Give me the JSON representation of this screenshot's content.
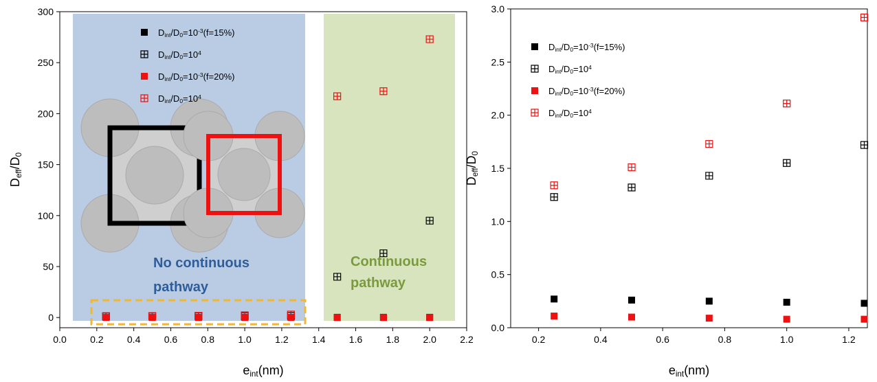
{
  "chart_data": [
    {
      "type": "scatter",
      "xlabel": [
        {
          "text": "e"
        },
        {
          "text": "int",
          "script": "sub"
        },
        {
          "text": "(nm)"
        }
      ],
      "ylabel": [
        {
          "text": "D"
        },
        {
          "text": "eff",
          "script": "sub"
        },
        {
          "text": "/D"
        },
        {
          "text": "0",
          "script": "sub"
        }
      ],
      "x": [
        0.25,
        0.5,
        0.75,
        1.0,
        1.25,
        1.5,
        1.75,
        2.0
      ],
      "xlim": [
        0,
        2.2
      ],
      "xticks": [
        {
          "value": 0,
          "label": "0.0"
        },
        0.2,
        0.4,
        0.6,
        0.8,
        {
          "value": 1,
          "label": "1.0"
        },
        1.2,
        1.4,
        1.6,
        1.8,
        {
          "value": 2,
          "label": "2.0"
        },
        2.2
      ],
      "ylim": [
        -10,
        300
      ],
      "yticks": [
        0,
        50,
        100,
        150,
        200,
        250,
        300
      ],
      "series": [
        {
          "name": [
            {
              "text": "D"
            },
            {
              "text": "int",
              "script": "sub"
            },
            {
              "text": "/D"
            },
            {
              "text": "0",
              "script": "sub"
            },
            {
              "text": "=10"
            },
            {
              "text": "-3",
              "script": "sup"
            },
            {
              "text": "(f=15%)"
            }
          ],
          "color": "#000000",
          "marker": "square",
          "values": [
            0.27,
            0.26,
            0.25,
            0.24,
            0.23,
            0.2,
            0.2,
            0.2
          ]
        },
        {
          "name": [
            {
              "text": "D"
            },
            {
              "text": "int",
              "script": "sub"
            },
            {
              "text": "/D"
            },
            {
              "text": "0",
              "script": "sub"
            },
            {
              "text": "=10"
            },
            {
              "text": "4",
              "script": "sup"
            }
          ],
          "color": "#000000",
          "marker": "square-cross",
          "values": [
            1.23,
            1.32,
            1.43,
            1.55,
            1.72,
            40,
            63,
            95
          ]
        },
        {
          "name": [
            {
              "text": "D"
            },
            {
              "text": "int",
              "script": "sub"
            },
            {
              "text": "/D"
            },
            {
              "text": "0",
              "script": "sub"
            },
            {
              "text": "=10"
            },
            {
              "text": "-3",
              "script": "sup"
            },
            {
              "text": "(f=20%)"
            }
          ],
          "color": "#ee1111",
          "marker": "square",
          "values": [
            0.11,
            0.1,
            0.09,
            0.08,
            0.08,
            0,
            0,
            0
          ]
        },
        {
          "name": [
            {
              "text": "D"
            },
            {
              "text": "int",
              "script": "sub"
            },
            {
              "text": "/D"
            },
            {
              "text": "0",
              "script": "sub"
            },
            {
              "text": "=10"
            },
            {
              "text": "4",
              "script": "sup"
            }
          ],
          "color": "#ee1111",
          "marker": "square-cross",
          "values": [
            1.34,
            1.51,
            1.73,
            2.11,
            2.92,
            217,
            222,
            273
          ]
        }
      ],
      "annotations": [
        {
          "text": [
            "No continuous",
            "pathway"
          ],
          "color": "#2f5d9a"
        },
        {
          "text": [
            "Continuous",
            "pathway"
          ],
          "color": "#7b9a3c"
        }
      ]
    },
    {
      "type": "scatter",
      "xlabel": [
        {
          "text": "e"
        },
        {
          "text": "int",
          "script": "sub"
        },
        {
          "text": "(nm)"
        }
      ],
      "ylabel": [
        {
          "text": "D"
        },
        {
          "text": "eff",
          "script": "sub"
        },
        {
          "text": "/D"
        },
        {
          "text": "0",
          "script": "sub"
        }
      ],
      "x": [
        0.25,
        0.5,
        0.75,
        1.0,
        1.25
      ],
      "xlim": [
        0.11,
        1.26
      ],
      "xticks": [
        0.2,
        0.4,
        0.6,
        0.8,
        {
          "value": 1,
          "label": "1.0"
        },
        1.2
      ],
      "ylim": [
        0,
        3
      ],
      "yticks": [
        {
          "value": 0,
          "label": "0.0"
        },
        0.5,
        {
          "value": 1,
          "label": "1.0"
        },
        1.5,
        {
          "value": 2,
          "label": "2.0"
        },
        2.5,
        {
          "value": 3,
          "label": "3.0"
        }
      ],
      "series": [
        {
          "name": [
            {
              "text": "D"
            },
            {
              "text": "int",
              "script": "sub"
            },
            {
              "text": "/D"
            },
            {
              "text": "0",
              "script": "sub"
            },
            {
              "text": "=10"
            },
            {
              "text": "-3",
              "script": "sup"
            },
            {
              "text": "(f=15%)"
            }
          ],
          "color": "#000000",
          "marker": "square",
          "values": [
            0.27,
            0.26,
            0.25,
            0.24,
            0.23
          ]
        },
        {
          "name": [
            {
              "text": "D"
            },
            {
              "text": "int",
              "script": "sub"
            },
            {
              "text": "/D"
            },
            {
              "text": "0",
              "script": "sub"
            },
            {
              "text": "=10"
            },
            {
              "text": "4",
              "script": "sup"
            }
          ],
          "color": "#000000",
          "marker": "square-cross",
          "values": [
            1.23,
            1.32,
            1.43,
            1.55,
            1.72
          ]
        },
        {
          "name": [
            {
              "text": "D"
            },
            {
              "text": "int",
              "script": "sub"
            },
            {
              "text": "/D"
            },
            {
              "text": "0",
              "script": "sub"
            },
            {
              "text": "=10"
            },
            {
              "text": "-3",
              "script": "sup"
            },
            {
              "text": "(f=20%)"
            }
          ],
          "color": "#ee1111",
          "marker": "square",
          "values": [
            0.11,
            0.1,
            0.09,
            0.08,
            0.08
          ]
        },
        {
          "name": [
            {
              "text": "D"
            },
            {
              "text": "int",
              "script": "sub"
            },
            {
              "text": "/D"
            },
            {
              "text": "0",
              "script": "sub"
            },
            {
              "text": "=10"
            },
            {
              "text": "4",
              "script": "sup"
            }
          ],
          "color": "#ee1111",
          "marker": "square-cross",
          "values": [
            1.34,
            1.51,
            1.73,
            2.11,
            2.92
          ]
        }
      ]
    }
  ]
}
